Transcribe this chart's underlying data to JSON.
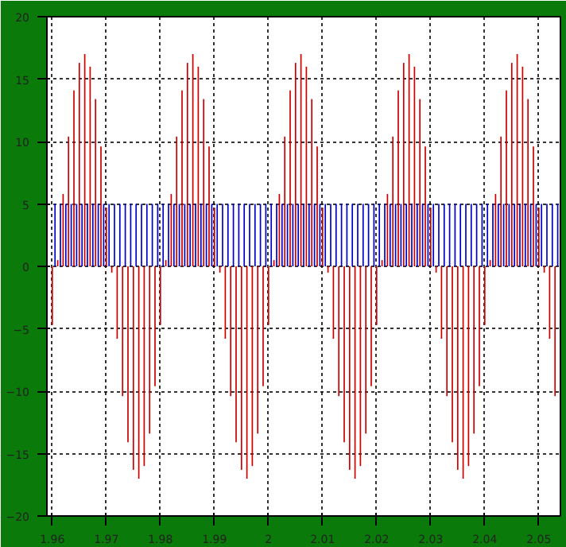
{
  "chart_data": {
    "type": "bar",
    "grid": true,
    "x": [
      1.96,
      1.961,
      1.962,
      1.963,
      1.964,
      1.965,
      1.966,
      1.967,
      1.968,
      1.969,
      1.97,
      1.971,
      1.972,
      1.973,
      1.974,
      1.975,
      1.976,
      1.977,
      1.978,
      1.979,
      1.98,
      1.981,
      1.982,
      1.983,
      1.984,
      1.985,
      1.986,
      1.987,
      1.988,
      1.989,
      1.99,
      1.991,
      1.992,
      1.993,
      1.994,
      1.995,
      1.996,
      1.997,
      1.998,
      1.999,
      2.0,
      2.001,
      2.002,
      2.003,
      2.004,
      2.005,
      2.006,
      2.007,
      2.008,
      2.009,
      2.01,
      2.011,
      2.012,
      2.013,
      2.014,
      2.015,
      2.016,
      2.017,
      2.018,
      2.019,
      2.02,
      2.021,
      2.022,
      2.023,
      2.024,
      2.025,
      2.026,
      2.027,
      2.028,
      2.029,
      2.03,
      2.031,
      2.032,
      2.033,
      2.034,
      2.035,
      2.036,
      2.037,
      2.038,
      2.039,
      2.04,
      2.041,
      2.042,
      2.043,
      2.044,
      2.045,
      2.046,
      2.047,
      2.048,
      2.049,
      2.05,
      2.051,
      2.052,
      2.053
    ],
    "xlim": [
      1.959,
      2.054
    ],
    "xticks": [
      1.96,
      1.97,
      1.98,
      1.99,
      2,
      2.01,
      2.02,
      2.03,
      2.04,
      2.05
    ],
    "ylim": [
      -20,
      20
    ],
    "yticks": [
      -20,
      -15,
      -10,
      -5,
      0,
      5,
      10,
      15,
      20
    ],
    "series": [
      {
        "color": "#cc0000",
        "values": [
          -4.7,
          0.5,
          5.8,
          10.4,
          14.1,
          16.3,
          17.0,
          16.0,
          13.4,
          9.6,
          4.7,
          -0.5,
          -5.8,
          -10.4,
          -14.1,
          -16.3,
          -17.0,
          -16.0,
          -13.4,
          -9.6,
          -4.7,
          0.5,
          5.8,
          10.4,
          14.1,
          16.3,
          17.0,
          16.0,
          13.4,
          9.6,
          4.7,
          -0.5,
          -5.8,
          -10.4,
          -14.1,
          -16.3,
          -17.0,
          -16.0,
          -13.4,
          -9.6,
          -4.7,
          0.5,
          5.8,
          10.4,
          14.1,
          16.3,
          17.0,
          16.0,
          13.4,
          9.6,
          4.7,
          -0.5,
          -5.8,
          -10.4,
          -14.1,
          -16.3,
          -17.0,
          -16.0,
          -13.4,
          -9.6,
          -4.7,
          0.5,
          5.8,
          10.4,
          14.1,
          16.3,
          17.0,
          16.0,
          13.4,
          9.6,
          4.7,
          -0.5,
          -5.8,
          -10.4,
          -14.1,
          -16.3,
          -17.0,
          -16.0,
          -13.4,
          -9.6,
          -4.7,
          0.5,
          5.8,
          10.4,
          14.1,
          16.3,
          17.0,
          16.0,
          13.4,
          9.6,
          4.7,
          -0.5,
          -5.8,
          -10.4
        ]
      },
      {
        "color": "#0000cc",
        "x": [
          1.9605,
          1.9615,
          1.9625,
          1.9635,
          1.9645,
          1.9655,
          1.9665,
          1.9675,
          1.9685,
          1.9695,
          1.9705,
          1.9715,
          1.9725,
          1.9735,
          1.9745,
          1.9755,
          1.9765,
          1.9775,
          1.9785,
          1.9795,
          1.9805,
          1.9815,
          1.9825,
          1.9835,
          1.9845,
          1.9855,
          1.9865,
          1.9875,
          1.9885,
          1.9895,
          1.9905,
          1.9915,
          1.9925,
          1.9935,
          1.9945,
          1.9955,
          1.9965,
          1.9975,
          1.9985,
          1.9995,
          2.0005,
          2.0015,
          2.0025,
          2.0035,
          2.0045,
          2.0055,
          2.0065,
          2.0075,
          2.0085,
          2.0095,
          2.0105,
          2.0115,
          2.0125,
          2.0135,
          2.0145,
          2.0155,
          2.0165,
          2.0175,
          2.0185,
          2.0195,
          2.0205,
          2.0215,
          2.0225,
          2.0235,
          2.0245,
          2.0255,
          2.0265,
          2.0275,
          2.0285,
          2.0295,
          2.0305,
          2.0315,
          2.0325,
          2.0335,
          2.0345,
          2.0355,
          2.0365,
          2.0375,
          2.0385,
          2.0395,
          2.0405,
          2.0415,
          2.0425,
          2.0435,
          2.0445,
          2.0455,
          2.0465,
          2.0475,
          2.0485,
          2.0495,
          2.0505,
          2.0515,
          2.0525,
          2.0535
        ],
        "values": [
          5,
          5,
          5,
          5,
          5,
          5,
          5,
          5,
          5,
          5,
          5,
          5,
          5,
          5,
          5,
          5,
          5,
          5,
          5,
          5,
          5,
          5,
          5,
          5,
          5,
          5,
          5,
          5,
          5,
          5,
          5,
          5,
          5,
          5,
          5,
          5,
          5,
          5,
          5,
          5,
          5,
          5,
          5,
          5,
          5,
          5,
          5,
          5,
          5,
          5,
          5,
          5,
          5,
          5,
          5,
          5,
          5,
          5,
          5,
          5,
          5,
          5,
          5,
          5,
          5,
          5,
          5,
          5,
          5,
          5,
          5,
          5,
          5,
          5,
          5,
          5,
          5,
          5,
          5,
          5,
          5,
          5,
          5,
          5,
          5,
          5,
          5,
          5,
          5,
          5,
          5,
          5,
          5,
          5
        ]
      }
    ]
  }
}
